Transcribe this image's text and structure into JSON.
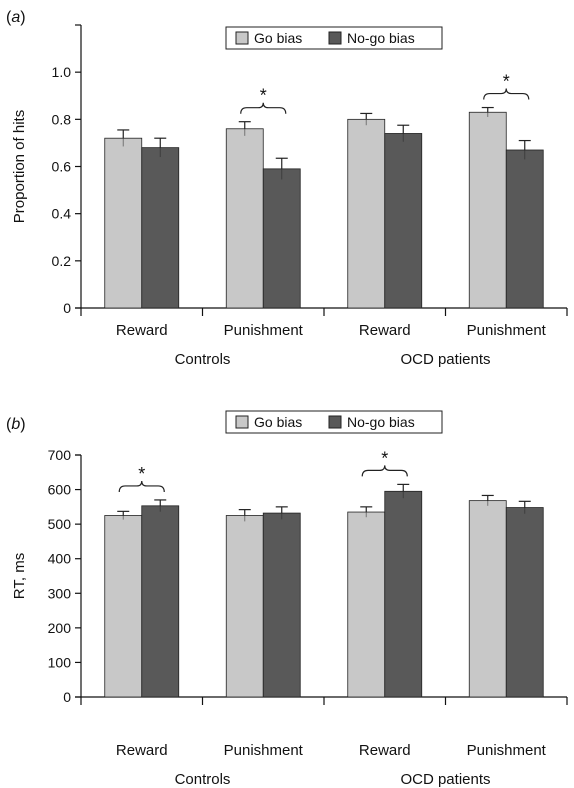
{
  "figure": {
    "colors": {
      "go": "#c8c8c8",
      "nogo": "#595959",
      "axis": "#111111",
      "outline": "#222222"
    }
  },
  "chart_data": [
    {
      "type": "bar",
      "panel_label": "a",
      "title": "",
      "xlabel": "",
      "ylabel": "Proportion of hits",
      "ylim": [
        0,
        1.2
      ],
      "yticks": [
        "0",
        "0.2",
        "0.4",
        "0.6",
        "0.8",
        "1.0"
      ],
      "ytick_values": [
        0,
        0.2,
        0.4,
        0.6,
        0.8,
        1.0
      ],
      "categories": [
        "Reward",
        "Punishment",
        "Reward",
        "Punishment"
      ],
      "groups": [
        "Controls",
        "OCD patients"
      ],
      "legend": [
        "Go bias",
        "No-go bias"
      ],
      "legend_position": "top-center",
      "grid": false,
      "series": [
        {
          "name": "Go bias",
          "values": [
            0.72,
            0.76,
            0.8,
            0.83
          ],
          "errors": [
            0.035,
            0.03,
            0.025,
            0.02
          ]
        },
        {
          "name": "No-go bias",
          "values": [
            0.68,
            0.59,
            0.74,
            0.67
          ],
          "errors": [
            0.04,
            0.045,
            0.035,
            0.04
          ]
        }
      ],
      "significance": [
        {
          "category": 1,
          "label": "*"
        },
        {
          "category": 3,
          "label": "*"
        }
      ]
    },
    {
      "type": "bar",
      "panel_label": "b",
      "title": "",
      "xlabel": "",
      "ylabel": "RT, ms",
      "ylim": [
        0,
        700
      ],
      "yticks": [
        "0",
        "100",
        "200",
        "300",
        "400",
        "500",
        "600",
        "700"
      ],
      "ytick_values": [
        0,
        100,
        200,
        300,
        400,
        500,
        600,
        700
      ],
      "categories": [
        "Reward",
        "Punishment",
        "Reward",
        "Punishment"
      ],
      "groups": [
        "Controls",
        "OCD patients"
      ],
      "legend": [
        "Go bias",
        "No-go bias"
      ],
      "legend_position": "top-center",
      "grid": false,
      "series": [
        {
          "name": "Go bias",
          "values": [
            525,
            525,
            535,
            568
          ],
          "errors": [
            12,
            17,
            15,
            15
          ]
        },
        {
          "name": "No-go bias",
          "values": [
            553,
            532,
            595,
            548
          ],
          "errors": [
            17,
            18,
            20,
            18
          ]
        }
      ],
      "significance": [
        {
          "category": 0,
          "label": "*"
        },
        {
          "category": 2,
          "label": "*"
        }
      ]
    }
  ]
}
